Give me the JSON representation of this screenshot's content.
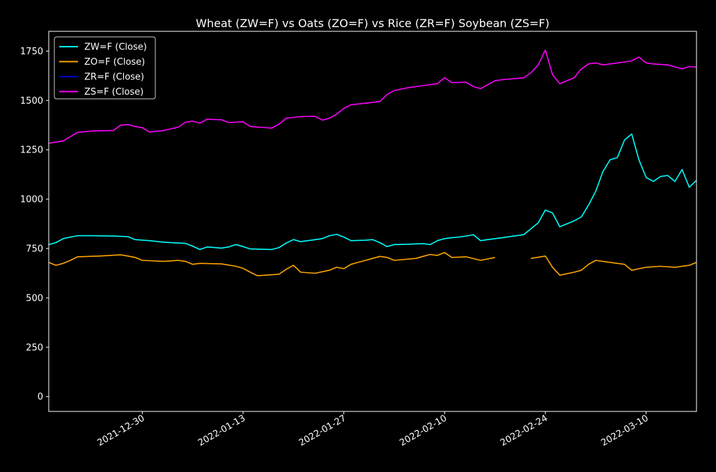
{
  "chart_data": {
    "type": "line",
    "title": "Wheat (ZW=F) vs Oats (ZO=F) vs Rice (ZR=F) Soybean (ZS=F)",
    "xlabel": "",
    "ylabel": "",
    "xlim": [
      "2021-12-17",
      "2022-03-17"
    ],
    "ylim": [
      -75,
      1850
    ],
    "x_ticks": [
      "2021-12-30",
      "2022-01-13",
      "2022-01-27",
      "2022-02-10",
      "2022-02-24",
      "2022-03-10"
    ],
    "y_ticks": [
      0,
      250,
      500,
      750,
      1000,
      1250,
      1500,
      1750
    ],
    "y_tick_labels": [
      "0",
      "250",
      "500",
      "750",
      "1000",
      "1250",
      "1500",
      "1750"
    ],
    "legend_position": "upper-left",
    "background": "#000000",
    "grid": false,
    "series": [
      {
        "name": "ZW=F (Close)",
        "color": "#00ffff",
        "points": [
          [
            "2021-12-17",
            770
          ],
          [
            "2021-12-18",
            780
          ],
          [
            "2021-12-19",
            800
          ],
          [
            "2021-12-20",
            808
          ],
          [
            "2021-12-21",
            815
          ],
          [
            "2021-12-23",
            815
          ],
          [
            "2021-12-26",
            813
          ],
          [
            "2021-12-28",
            810
          ],
          [
            "2021-12-29",
            795
          ],
          [
            "2021-12-31",
            790
          ],
          [
            "2022-01-02",
            782
          ],
          [
            "2022-01-04",
            778
          ],
          [
            "2022-01-05",
            776
          ],
          [
            "2022-01-06",
            762
          ],
          [
            "2022-01-07",
            745
          ],
          [
            "2022-01-08",
            758
          ],
          [
            "2022-01-10",
            752
          ],
          [
            "2022-01-11",
            758
          ],
          [
            "2022-01-12",
            770
          ],
          [
            "2022-01-13",
            760
          ],
          [
            "2022-01-14",
            748
          ],
          [
            "2022-01-17",
            745
          ],
          [
            "2022-01-18",
            755
          ],
          [
            "2022-01-19",
            778
          ],
          [
            "2022-01-20",
            795
          ],
          [
            "2022-01-21",
            785
          ],
          [
            "2022-01-22",
            790
          ],
          [
            "2022-01-24",
            800
          ],
          [
            "2022-01-25",
            815
          ],
          [
            "2022-01-26",
            822
          ],
          [
            "2022-01-27",
            808
          ],
          [
            "2022-01-28",
            790
          ],
          [
            "2022-01-30",
            792
          ],
          [
            "2022-01-31",
            795
          ],
          [
            "2022-02-01",
            780
          ],
          [
            "2022-02-02",
            760
          ],
          [
            "2022-02-03",
            770
          ],
          [
            "2022-02-05",
            772
          ],
          [
            "2022-02-07",
            775
          ],
          [
            "2022-02-08",
            770
          ],
          [
            "2022-02-09",
            790
          ],
          [
            "2022-02-10",
            800
          ],
          [
            "2022-02-11",
            805
          ],
          [
            "2022-02-12",
            808
          ],
          [
            "2022-02-13",
            813
          ],
          [
            "2022-02-14",
            820
          ],
          [
            "2022-02-15",
            790
          ],
          [
            "2022-02-16",
            795
          ],
          [
            "2022-02-17",
            800
          ],
          [
            "2022-02-18",
            805
          ],
          [
            "2022-02-21",
            820
          ],
          [
            "2022-02-22",
            850
          ],
          [
            "2022-02-23",
            880
          ],
          [
            "2022-02-24",
            945
          ],
          [
            "2022-02-25",
            930
          ],
          [
            "2022-02-26",
            860
          ],
          [
            "2022-02-27",
            875
          ],
          [
            "2022-02-28",
            890
          ],
          [
            "2022-03-01",
            910
          ],
          [
            "2022-03-02",
            970
          ],
          [
            "2022-03-03",
            1040
          ],
          [
            "2022-03-04",
            1140
          ],
          [
            "2022-03-05",
            1200
          ],
          [
            "2022-03-06",
            1210
          ],
          [
            "2022-03-07",
            1300
          ],
          [
            "2022-03-08",
            1330
          ],
          [
            "2022-03-09",
            1200
          ],
          [
            "2022-03-10",
            1110
          ],
          [
            "2022-03-11",
            1090
          ],
          [
            "2022-03-12",
            1115
          ],
          [
            "2022-03-13",
            1120
          ],
          [
            "2022-03-14",
            1090
          ],
          [
            "2022-03-15",
            1150
          ],
          [
            "2022-03-16",
            1060
          ],
          [
            "2022-03-17",
            1095
          ]
        ]
      },
      {
        "name": "ZO=F (Close)",
        "color": "#ffa500",
        "points": [
          [
            "2021-12-17",
            680
          ],
          [
            "2021-12-18",
            665
          ],
          [
            "2021-12-19",
            675
          ],
          [
            "2021-12-20",
            690
          ],
          [
            "2021-12-21",
            708
          ],
          [
            "2021-12-24",
            712
          ],
          [
            "2021-12-27",
            718
          ],
          [
            "2021-12-28",
            712
          ],
          [
            "2021-12-29",
            705
          ],
          [
            "2021-12-30",
            690
          ],
          [
            "2022-01-02",
            685
          ],
          [
            "2022-01-04",
            690
          ],
          [
            "2022-01-05",
            685
          ],
          [
            "2022-01-06",
            670
          ],
          [
            "2022-01-07",
            675
          ],
          [
            "2022-01-10",
            672
          ],
          [
            "2022-01-12",
            660
          ],
          [
            "2022-01-13",
            650
          ],
          [
            "2022-01-14",
            630
          ],
          [
            "2022-01-15",
            612
          ],
          [
            "2022-01-18",
            620
          ],
          [
            "2022-01-19",
            645
          ],
          [
            "2022-01-20",
            665
          ],
          [
            "2022-01-21",
            630
          ],
          [
            "2022-01-23",
            625
          ],
          [
            "2022-01-25",
            640
          ],
          [
            "2022-01-26",
            655
          ],
          [
            "2022-01-27",
            648
          ],
          [
            "2022-01-28",
            670
          ],
          [
            "2022-01-30",
            690
          ],
          [
            "2022-01-31",
            700
          ],
          [
            "2022-02-01",
            710
          ],
          [
            "2022-02-02",
            705
          ],
          [
            "2022-02-03",
            690
          ],
          [
            "2022-02-06",
            700
          ],
          [
            "2022-02-07",
            710
          ],
          [
            "2022-02-08",
            720
          ],
          [
            "2022-02-09",
            715
          ],
          [
            "2022-02-10",
            730
          ],
          [
            "2022-02-11",
            705
          ],
          [
            "2022-02-13",
            708
          ],
          [
            "2022-02-15",
            690
          ],
          [
            "2022-02-17",
            705
          ],
          [
            "2022-02-22",
            700
          ],
          [
            "2022-02-24",
            712
          ],
          [
            "2022-02-25",
            655
          ],
          [
            "2022-02-26",
            615
          ],
          [
            "2022-02-28",
            630
          ],
          [
            "2022-03-01",
            640
          ],
          [
            "2022-03-02",
            670
          ],
          [
            "2022-03-03",
            690
          ],
          [
            "2022-03-05",
            680
          ],
          [
            "2022-03-07",
            670
          ],
          [
            "2022-03-08",
            640
          ],
          [
            "2022-03-10",
            655
          ],
          [
            "2022-03-12",
            660
          ],
          [
            "2022-03-14",
            655
          ],
          [
            "2022-03-16",
            665
          ],
          [
            "2022-03-17",
            680
          ]
        ]
      },
      {
        "name": "ZR=F (Close)",
        "color": "#0000cd",
        "points": [
          [
            "2021-12-17",
            14.5
          ],
          [
            "2021-12-27",
            14.6
          ],
          [
            "2022-01-06",
            14.7
          ],
          [
            "2022-01-16",
            14.6
          ],
          [
            "2022-01-26",
            14.8
          ],
          [
            "2022-02-05",
            15.0
          ],
          [
            "2022-02-15",
            15.3
          ],
          [
            "2022-02-25",
            15.8
          ],
          [
            "2022-03-07",
            16.0
          ],
          [
            "2022-03-17",
            16.1
          ]
        ]
      },
      {
        "name": "ZS=F (Close)",
        "color": "#ff00ff",
        "points": [
          [
            "2021-12-17",
            1283
          ],
          [
            "2021-12-19",
            1295
          ],
          [
            "2021-12-21",
            1338
          ],
          [
            "2021-12-23",
            1345
          ],
          [
            "2021-12-26",
            1348
          ],
          [
            "2021-12-27",
            1375
          ],
          [
            "2021-12-28",
            1378
          ],
          [
            "2021-12-29",
            1368
          ],
          [
            "2021-12-30",
            1362
          ],
          [
            "2021-12-31",
            1340
          ],
          [
            "2022-01-02",
            1348
          ],
          [
            "2022-01-04",
            1365
          ],
          [
            "2022-01-05",
            1390
          ],
          [
            "2022-01-06",
            1395
          ],
          [
            "2022-01-07",
            1385
          ],
          [
            "2022-01-08",
            1405
          ],
          [
            "2022-01-10",
            1402
          ],
          [
            "2022-01-11",
            1388
          ],
          [
            "2022-01-13",
            1392
          ],
          [
            "2022-01-14",
            1368
          ],
          [
            "2022-01-17",
            1360
          ],
          [
            "2022-01-18",
            1380
          ],
          [
            "2022-01-19",
            1410
          ],
          [
            "2022-01-21",
            1418
          ],
          [
            "2022-01-23",
            1420
          ],
          [
            "2022-01-24",
            1400
          ],
          [
            "2022-01-25",
            1410
          ],
          [
            "2022-01-26",
            1430
          ],
          [
            "2022-01-27",
            1460
          ],
          [
            "2022-01-28",
            1478
          ],
          [
            "2022-01-31",
            1490
          ],
          [
            "2022-02-01",
            1495
          ],
          [
            "2022-02-02",
            1530
          ],
          [
            "2022-02-03",
            1550
          ],
          [
            "2022-02-05",
            1565
          ],
          [
            "2022-02-07",
            1575
          ],
          [
            "2022-02-08",
            1580
          ],
          [
            "2022-02-09",
            1585
          ],
          [
            "2022-02-10",
            1615
          ],
          [
            "2022-02-11",
            1590
          ],
          [
            "2022-02-13",
            1592
          ],
          [
            "2022-02-14",
            1570
          ],
          [
            "2022-02-15",
            1560
          ],
          [
            "2022-02-16",
            1580
          ],
          [
            "2022-02-17",
            1600
          ],
          [
            "2022-02-18",
            1605
          ],
          [
            "2022-02-21",
            1615
          ],
          [
            "2022-02-22",
            1640
          ],
          [
            "2022-02-23",
            1680
          ],
          [
            "2022-02-24",
            1755
          ],
          [
            "2022-02-25",
            1630
          ],
          [
            "2022-02-26",
            1585
          ],
          [
            "2022-02-27",
            1600
          ],
          [
            "2022-02-28",
            1615
          ],
          [
            "2022-03-01",
            1660
          ],
          [
            "2022-03-02",
            1685
          ],
          [
            "2022-03-03",
            1690
          ],
          [
            "2022-03-04",
            1680
          ],
          [
            "2022-03-07",
            1695
          ],
          [
            "2022-03-08",
            1700
          ],
          [
            "2022-03-09",
            1720
          ],
          [
            "2022-03-10",
            1690
          ],
          [
            "2022-03-11",
            1685
          ],
          [
            "2022-03-13",
            1680
          ],
          [
            "2022-03-14",
            1670
          ],
          [
            "2022-03-15",
            1660
          ],
          [
            "2022-03-16",
            1672
          ],
          [
            "2022-03-17",
            1668
          ]
        ]
      }
    ]
  }
}
